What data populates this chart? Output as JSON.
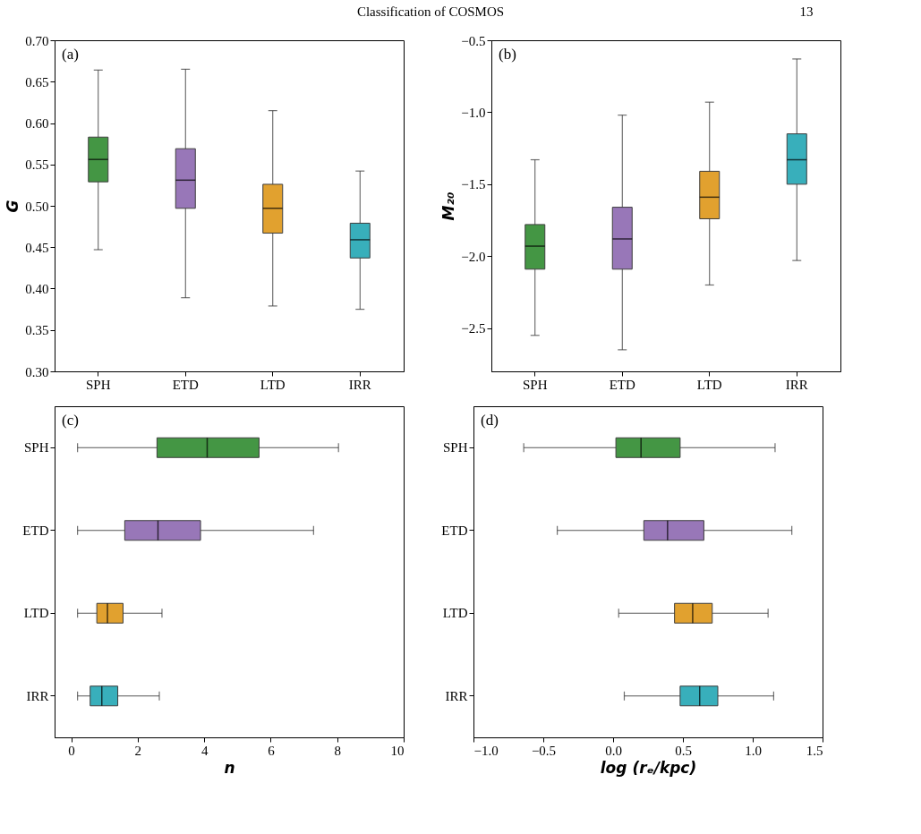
{
  "chart_data": [
    {
      "type": "box",
      "title": "Classification of COSMOS",
      "annotations": [
        "13",
        "(a)"
      ],
      "ylabel": "G",
      "categories": [
        "SPH",
        "ETD",
        "LTD",
        "IRR"
      ],
      "colors": [
        "#3a913a",
        "#9370b5",
        "#e09d24",
        "#2eabb8"
      ],
      "boxes": [
        {
          "low": 0.447,
          "q1": 0.529,
          "median": 0.556,
          "q3": 0.583,
          "high": 0.664
        },
        {
          "low": 0.389,
          "q1": 0.497,
          "median": 0.531,
          "q3": 0.569,
          "high": 0.665
        },
        {
          "low": 0.379,
          "q1": 0.467,
          "median": 0.497,
          "q3": 0.526,
          "high": 0.615
        },
        {
          "low": 0.375,
          "q1": 0.437,
          "median": 0.459,
          "q3": 0.479,
          "high": 0.542
        }
      ],
      "ylim": [
        0.3,
        0.7
      ],
      "yticks": [
        {
          "value": 0.3,
          "label": "0.30"
        },
        {
          "value": 0.35,
          "label": "0.35"
        },
        {
          "value": 0.4,
          "label": "0.40"
        },
        {
          "value": 0.45,
          "label": "0.45"
        },
        {
          "value": 0.5,
          "label": "0.50"
        },
        {
          "value": 0.55,
          "label": "0.55"
        },
        {
          "value": 0.6,
          "label": "0.60"
        },
        {
          "value": 0.65,
          "label": "0.65"
        },
        {
          "value": 0.7,
          "label": "0.70"
        }
      ],
      "grid": false
    },
    {
      "type": "box",
      "annotations": [
        "(b)"
      ],
      "ylabel": "M₂₀",
      "categories": [
        "SPH",
        "ETD",
        "LTD",
        "IRR"
      ],
      "colors": [
        "#3a913a",
        "#9370b5",
        "#e09d24",
        "#2eabb8"
      ],
      "boxes": [
        {
          "low": -2.55,
          "q1": -2.09,
          "median": -1.93,
          "q3": -1.78,
          "high": -1.33
        },
        {
          "low": -2.65,
          "q1": -2.09,
          "median": -1.88,
          "q3": -1.66,
          "high": -1.02
        },
        {
          "low": -2.2,
          "q1": -1.74,
          "median": -1.59,
          "q3": -1.41,
          "high": -0.93
        },
        {
          "low": -2.03,
          "q1": -1.5,
          "median": -1.33,
          "q3": -1.15,
          "high": -0.63
        }
      ],
      "ylim": [
        -2.8,
        -0.5
      ],
      "yticks": [
        {
          "value": -2.5,
          "label": "−2.5"
        },
        {
          "value": -2.0,
          "label": "−2.0"
        },
        {
          "value": -1.5,
          "label": "−1.5"
        },
        {
          "value": -1.0,
          "label": "−1.0"
        },
        {
          "value": -0.5,
          "label": "−0.5"
        }
      ],
      "grid": false
    },
    {
      "type": "box",
      "orientation": "horizontal",
      "annotations": [
        "(c)"
      ],
      "xlabel": "n",
      "categories": [
        "SPH",
        "ETD",
        "LTD",
        "IRR"
      ],
      "colors": [
        "#3a913a",
        "#9370b5",
        "#e09d24",
        "#2eabb8"
      ],
      "boxes": [
        {
          "low": 0.19,
          "q1": 2.58,
          "median": 4.09,
          "q3": 5.65,
          "high": 8.04
        },
        {
          "low": 0.19,
          "q1": 1.61,
          "median": 2.61,
          "q3": 3.89,
          "high": 7.29
        },
        {
          "low": 0.19,
          "q1": 0.77,
          "median": 1.09,
          "q3": 1.56,
          "high": 2.73
        },
        {
          "low": 0.19,
          "q1": 0.57,
          "median": 0.92,
          "q3": 1.4,
          "high": 2.65
        }
      ],
      "xlim": [
        -0.5,
        10
      ],
      "xticks": [
        0,
        2,
        4,
        6,
        8,
        10
      ],
      "grid": false
    },
    {
      "type": "box",
      "orientation": "horizontal",
      "annotations": [
        "(d)"
      ],
      "xlabel": "log (rₑ/kpc)",
      "categories": [
        "SPH",
        "ETD",
        "LTD",
        "IRR"
      ],
      "colors": [
        "#3a913a",
        "#9370b5",
        "#e09d24",
        "#2eabb8"
      ],
      "boxes": [
        {
          "low": -0.64,
          "q1": 0.02,
          "median": 0.2,
          "q3": 0.48,
          "high": 1.16
        },
        {
          "low": -0.4,
          "q1": 0.22,
          "median": 0.39,
          "q3": 0.65,
          "high": 1.28
        },
        {
          "low": 0.04,
          "q1": 0.44,
          "median": 0.57,
          "q3": 0.71,
          "high": 1.11
        },
        {
          "low": 0.08,
          "q1": 0.48,
          "median": 0.62,
          "q3": 0.75,
          "high": 1.15
        }
      ],
      "xlim": [
        -1.0,
        1.5
      ],
      "xticks": [
        {
          "value": -1.0,
          "label": "−1.0"
        },
        {
          "value": -0.5,
          "label": "−0.5"
        },
        {
          "value": 0.0,
          "label": "0.0"
        },
        {
          "value": 0.5,
          "label": "0.5"
        },
        {
          "value": 1.0,
          "label": "1.0"
        },
        {
          "value": 1.5,
          "label": "1.5"
        }
      ],
      "grid": false
    }
  ]
}
